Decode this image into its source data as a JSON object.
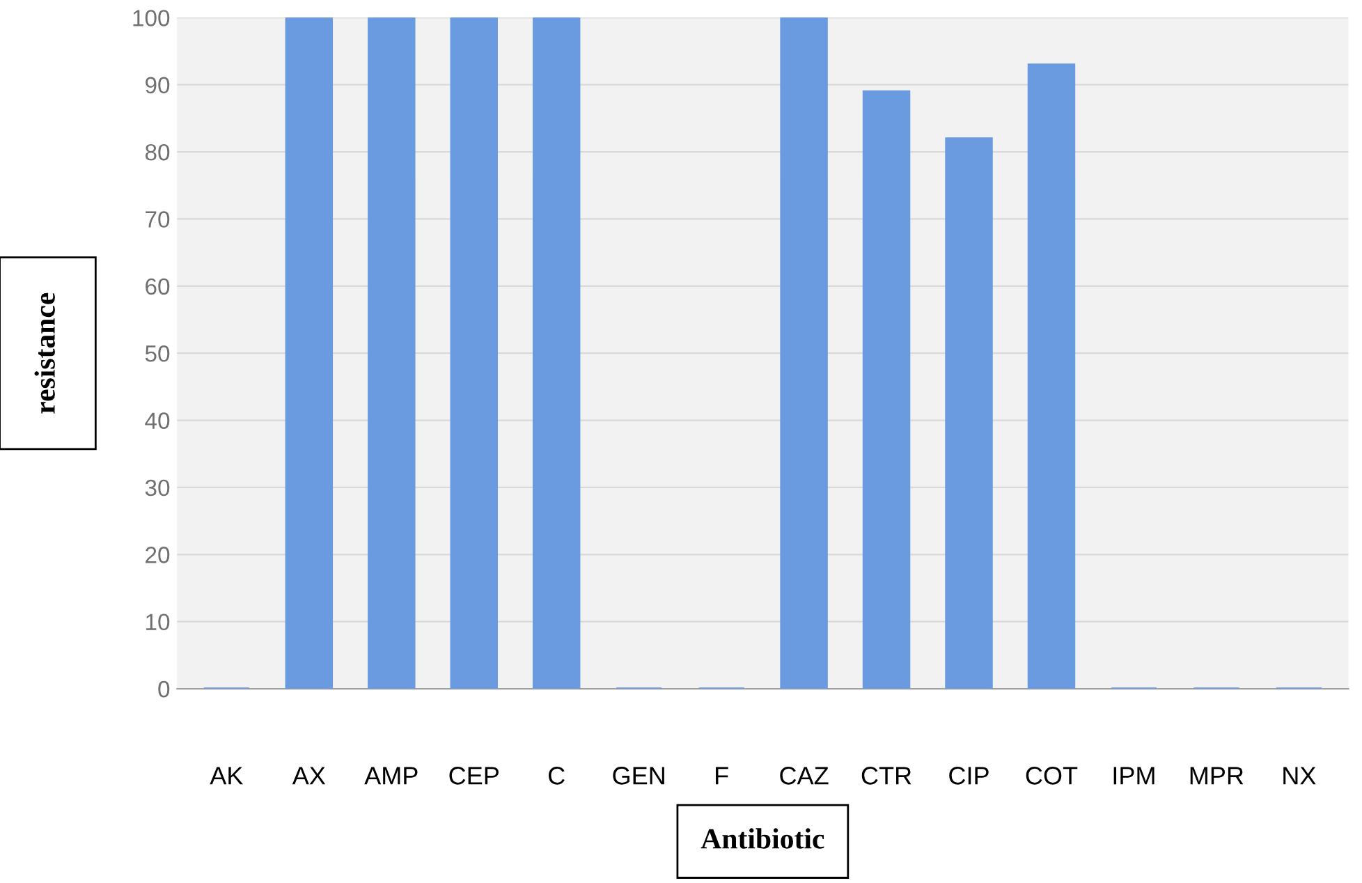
{
  "chart_data": {
    "type": "bar",
    "categories": [
      "AK",
      "AX",
      "AMP",
      "CEP",
      "C",
      "GEN",
      "F",
      "CAZ",
      "CTR",
      "CIP",
      "COT",
      "IPM",
      "MPR",
      "NX"
    ],
    "values": [
      0,
      100,
      100,
      100,
      100,
      0,
      0,
      100,
      89,
      82,
      93,
      0,
      0,
      0
    ],
    "color": "#6a9be0",
    "ylabel": "resistance",
    "xlabel": "Antibiotic",
    "ylim": [
      0,
      100
    ],
    "yticks": [
      0,
      10,
      20,
      30,
      40,
      50,
      60,
      70,
      80,
      90,
      100
    ],
    "grid": "y"
  }
}
